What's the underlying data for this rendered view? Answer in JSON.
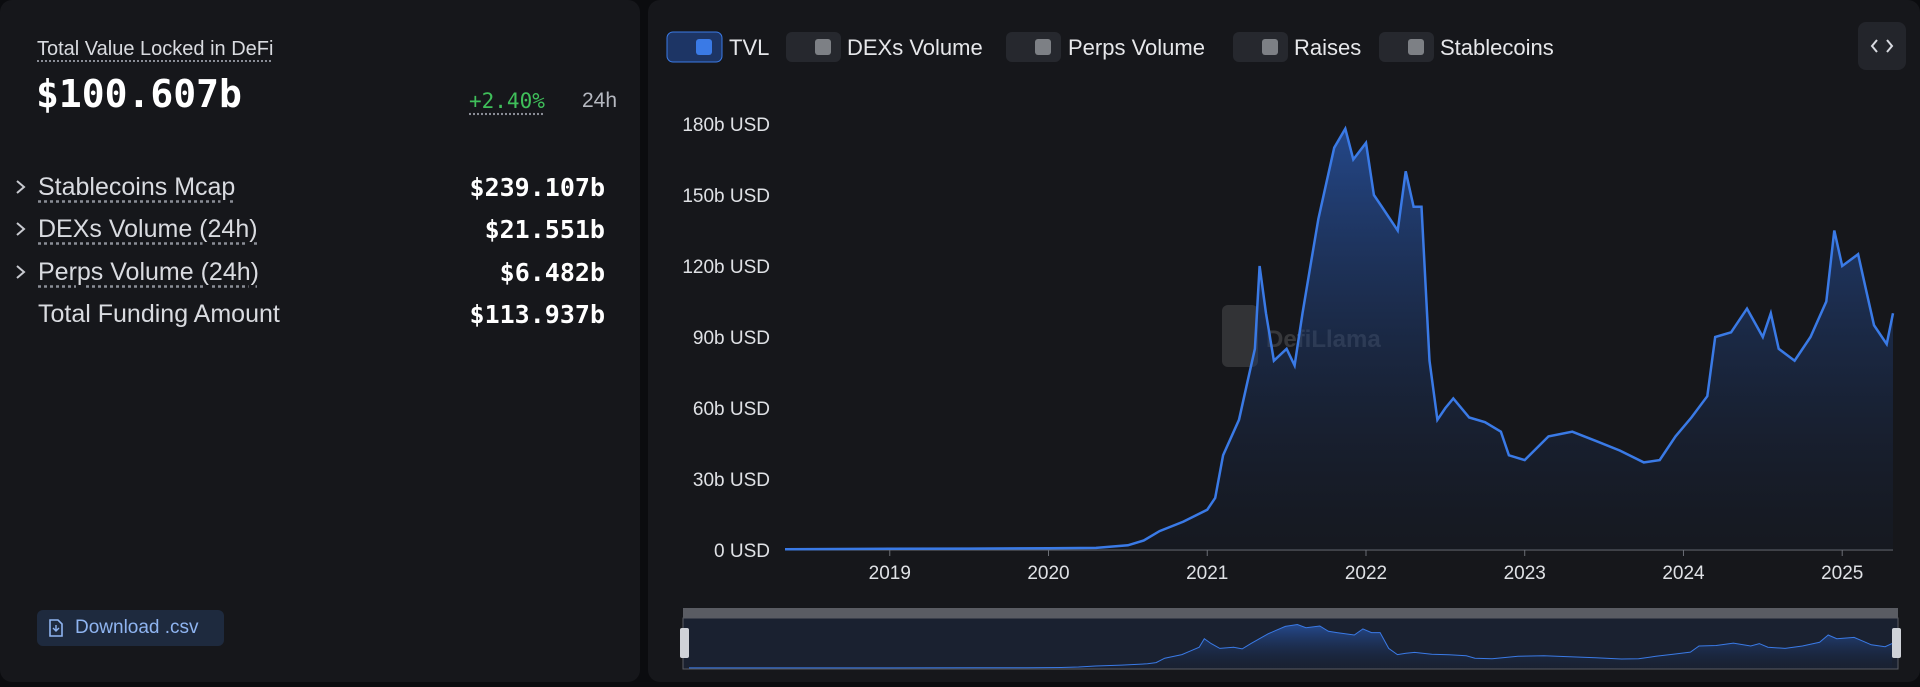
{
  "panel": {
    "title": "Total Value Locked in DeFi",
    "tvl": "$100.607b",
    "change": "+2.40%",
    "period": "24h",
    "rows": [
      {
        "label": "Stablecoins Mcap",
        "value": "$239.107b"
      },
      {
        "label": "DEXs Volume (24h)",
        "value": "$21.551b"
      },
      {
        "label": "Perps Volume (24h)",
        "value": "$6.482b"
      },
      {
        "label": "Total Funding Amount",
        "value": "$113.937b"
      }
    ],
    "download": "Download .csv"
  },
  "toggles": [
    "DEXs Volume",
    "Perps Volume",
    "Raises",
    "Stablecoins"
  ],
  "chart_data": {
    "type": "area",
    "watermark": "DefiLlama",
    "x": [
      2018.34,
      2019.0,
      2019.5,
      2020.0,
      2020.3,
      2020.5,
      2020.6,
      2020.7,
      2020.85,
      2021.0,
      2021.05,
      2021.1,
      2021.2,
      2021.25,
      2021.3,
      2021.33,
      2021.37,
      2021.42,
      2021.5,
      2021.55,
      2021.6,
      2021.65,
      2021.7,
      2021.75,
      2021.8,
      2021.87,
      2021.92,
      2022.0,
      2022.05,
      2022.1,
      2022.2,
      2022.25,
      2022.3,
      2022.35,
      2022.4,
      2022.45,
      2022.5,
      2022.55,
      2022.65,
      2022.75,
      2022.85,
      2022.9,
      2023.0,
      2023.15,
      2023.3,
      2023.45,
      2023.6,
      2023.75,
      2023.85,
      2023.95,
      2024.05,
      2024.15,
      2024.2,
      2024.3,
      2024.4,
      2024.5,
      2024.55,
      2024.6,
      2024.7,
      2024.8,
      2024.9,
      2024.95,
      2025.0,
      2025.1,
      2025.15,
      2025.2,
      2025.28,
      2025.32
    ],
    "series": [
      {
        "name": "TVL",
        "color": "#3a7ae6",
        "values": [
          0.3,
          0.5,
          0.6,
          0.7,
          0.9,
          2,
          4,
          8,
          12,
          17,
          22,
          40,
          55,
          70,
          85,
          120,
          100,
          80,
          85,
          78,
          100,
          120,
          140,
          155,
          170,
          178,
          165,
          172,
          150,
          145,
          135,
          160,
          145,
          145,
          80,
          55,
          60,
          64,
          56,
          54,
          50,
          40,
          38,
          48,
          50,
          46,
          42,
          37,
          38,
          48,
          56,
          65,
          90,
          92,
          102,
          90,
          100,
          85,
          80,
          90,
          105,
          135,
          120,
          125,
          110,
          95,
          87,
          100
        ]
      }
    ],
    "xlim": [
      2018.34,
      2025.32
    ],
    "xticks": [
      2019,
      2020,
      2021,
      2022,
      2023,
      2024,
      2025
    ],
    "ylim": [
      0,
      180
    ],
    "yticks": [
      {
        "value": 0,
        "label": "0 USD"
      },
      {
        "value": 30,
        "label": "30b USD"
      },
      {
        "value": 60,
        "label": "60b USD"
      },
      {
        "value": 90,
        "label": "90b USD"
      },
      {
        "value": 120,
        "label": "120b USD"
      },
      {
        "value": 150,
        "label": "150b USD"
      },
      {
        "value": 180,
        "label": "180b USD"
      }
    ]
  }
}
